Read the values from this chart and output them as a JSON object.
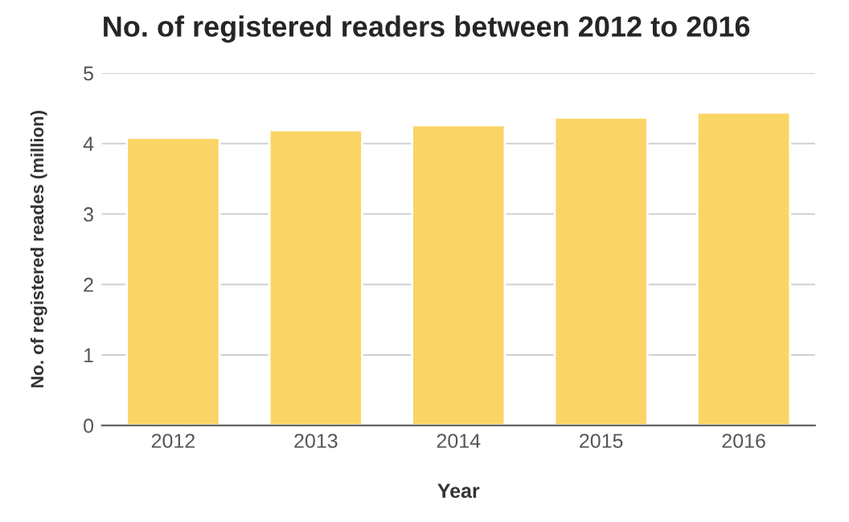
{
  "chart_data": {
    "type": "bar",
    "title": "No. of registered readers between 2012 to 2016",
    "xlabel": "Year",
    "ylabel": "No. of registered reades (million)",
    "categories": [
      "2012",
      "2013",
      "2014",
      "2015",
      "2016"
    ],
    "values": [
      4.08,
      4.19,
      4.26,
      4.37,
      4.44
    ],
    "color": "#fad566",
    "ylim": [
      0,
      5
    ],
    "yticks": [
      0,
      1,
      2,
      3,
      4,
      5
    ],
    "grid": "y",
    "legend": false
  }
}
